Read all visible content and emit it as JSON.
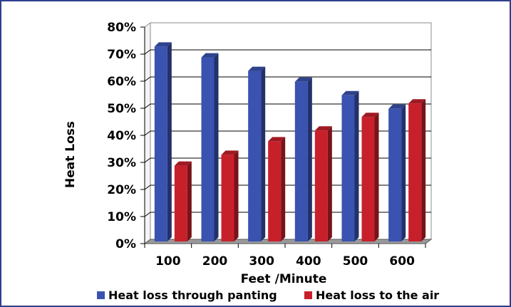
{
  "chart_data": {
    "type": "bar",
    "categories": [
      "100",
      "200",
      "300",
      "400",
      "500",
      "600"
    ],
    "series": [
      {
        "name": "Heat loss through panting",
        "values": [
          72,
          68,
          63,
          59,
          54,
          49
        ],
        "color": "#3a52b0"
      },
      {
        "name": "Heat loss to the air",
        "values": [
          28,
          32,
          37,
          41,
          46,
          51
        ],
        "color": "#c8202a"
      }
    ],
    "xlabel": "Feet /Minute",
    "ylabel": "Heat Loss",
    "ylim": [
      0,
      80
    ],
    "yticks": [
      "0%",
      "10%",
      "20%",
      "30%",
      "40%",
      "50%",
      "60%",
      "70%",
      "80%"
    ],
    "grid": true,
    "three_d": true,
    "legend_position": "bottom"
  },
  "colors": {
    "frame_border": "#2e3f8f",
    "panting": "#3a52b0",
    "air": "#c8202a"
  }
}
